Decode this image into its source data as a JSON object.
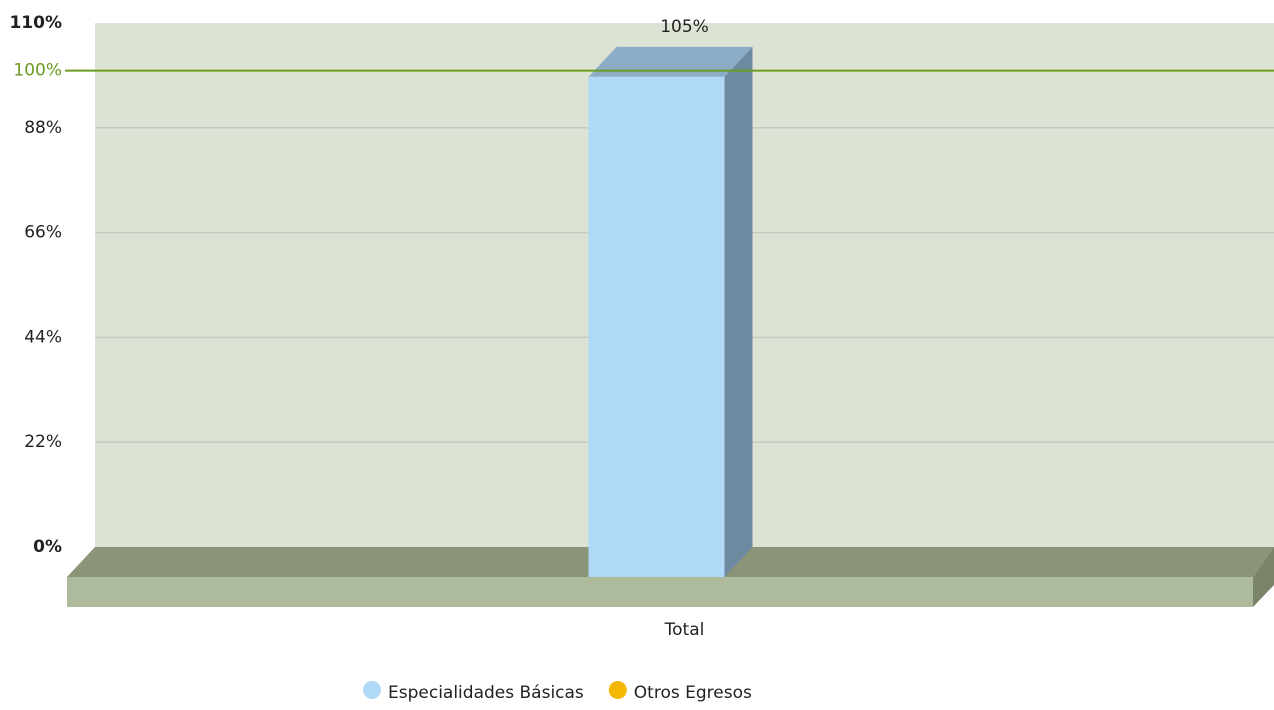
{
  "chart_data": {
    "type": "bar3d",
    "categories": [
      "Total"
    ],
    "series": [
      {
        "name": "Especialidades Básicas",
        "color": "#b0d8f7",
        "values": [
          105
        ],
        "value_labels": [
          "105%"
        ]
      },
      {
        "name": "Otros Egresos",
        "color": "#f5b800",
        "values": [
          null
        ]
      }
    ],
    "ylim": [
      0,
      110
    ],
    "yticks": [
      {
        "value": 0,
        "label": "0%"
      },
      {
        "value": 22,
        "label": "22%"
      },
      {
        "value": 44,
        "label": "44%"
      },
      {
        "value": 66,
        "label": "66%"
      },
      {
        "value": 88,
        "label": "88%"
      },
      {
        "value": 110,
        "label": "110%"
      }
    ],
    "trendlines": [
      {
        "value": 100,
        "label": "100%",
        "color": "#6a9a1f"
      }
    ],
    "grid": true
  }
}
